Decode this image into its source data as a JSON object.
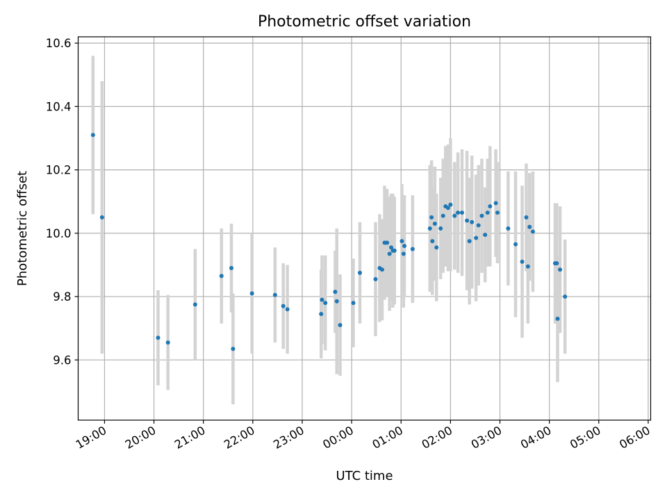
{
  "chart_data": {
    "type": "scatter",
    "title": "Photometric offset variation",
    "xlabel": "UTC time",
    "ylabel": "Photometric offset",
    "ylim": [
      9.41,
      10.62
    ],
    "xlim": [
      "18:28",
      "06:03"
    ],
    "x_ticks": [
      "19:00",
      "20:00",
      "21:00",
      "22:00",
      "23:00",
      "00:00",
      "01:00",
      "02:00",
      "03:00",
      "04:00",
      "05:00",
      "06:00"
    ],
    "y_ticks": [
      9.6,
      9.8,
      10.0,
      10.2,
      10.4,
      10.6
    ],
    "y_tick_labels": [
      "9.6",
      "9.8",
      "10.0",
      "10.2",
      "10.4",
      "10.6"
    ],
    "grid": true,
    "marker_color": "#1f77b4",
    "errorbar_color": "#d3d3d3",
    "series": [
      {
        "x": [
          "18:46",
          "18:57",
          "20:05",
          "20:17",
          "20:50",
          "21:22",
          "21:34",
          "21:36",
          "21:59",
          "22:27",
          "22:37",
          "22:42",
          "23:23",
          "23:24",
          "23:28",
          "23:40",
          "23:42",
          "23:46",
          "24:02",
          "24:10",
          "24:29",
          "24:34",
          "24:37",
          "24:40",
          "24:43",
          "24:46",
          "24:48",
          "24:50",
          "24:52",
          "25:01",
          "25:03",
          "25:04",
          "25:14",
          "25:35",
          "25:37",
          "25:38",
          "25:41",
          "25:43",
          "25:48",
          "25:51",
          "25:54",
          "25:57",
          "26:00",
          "26:05",
          "26:09",
          "26:14",
          "26:20",
          "26:23",
          "26:26",
          "26:31",
          "26:34",
          "26:38",
          "26:42",
          "26:45",
          "26:48",
          "26:55",
          "26:57",
          "27:10",
          "27:19",
          "27:27",
          "27:32",
          "27:34",
          "27:36",
          "27:40",
          "28:07",
          "28:09",
          "28:10",
          "28:13",
          "28:19"
        ],
        "y": [
          10.31,
          10.05,
          9.67,
          9.655,
          9.775,
          9.865,
          9.89,
          9.635,
          9.81,
          9.805,
          9.77,
          9.76,
          9.745,
          9.79,
          9.78,
          9.815,
          9.785,
          9.71,
          9.78,
          9.875,
          9.855,
          9.89,
          9.885,
          9.97,
          9.97,
          9.935,
          9.955,
          9.945,
          9.945,
          9.975,
          9.935,
          9.96,
          9.95,
          10.015,
          10.05,
          9.975,
          10.03,
          9.955,
          10.015,
          10.055,
          10.085,
          10.08,
          10.09,
          10.055,
          10.065,
          10.065,
          10.04,
          9.975,
          10.035,
          9.985,
          10.025,
          10.055,
          9.995,
          10.065,
          10.085,
          10.095,
          10.065,
          10.015,
          9.965,
          9.91,
          10.05,
          9.895,
          10.02,
          10.005,
          9.905,
          9.905,
          9.73,
          9.885,
          9.8
        ],
        "err": [
          0.25,
          0.43,
          0.15,
          0.15,
          0.175,
          0.15,
          0.14,
          0.175,
          0.19,
          0.15,
          0.135,
          0.14,
          0.14,
          0.14,
          0.15,
          0.13,
          0.23,
          0.16,
          0.14,
          0.16,
          0.18,
          0.17,
          0.16,
          0.18,
          0.17,
          0.18,
          0.17,
          0.18,
          0.17,
          0.18,
          0.17,
          0.16,
          0.17,
          0.2,
          0.18,
          0.17,
          0.18,
          0.17,
          0.16,
          0.18,
          0.19,
          0.2,
          0.21,
          0.17,
          0.19,
          0.2,
          0.22,
          0.2,
          0.21,
          0.2,
          0.19,
          0.18,
          0.15,
          0.17,
          0.19,
          0.17,
          0.16,
          0.18,
          0.23,
          0.24,
          0.17,
          0.18,
          0.17,
          0.19,
          0.19,
          0.19,
          0.2,
          0.2,
          0.18
        ]
      }
    ]
  }
}
